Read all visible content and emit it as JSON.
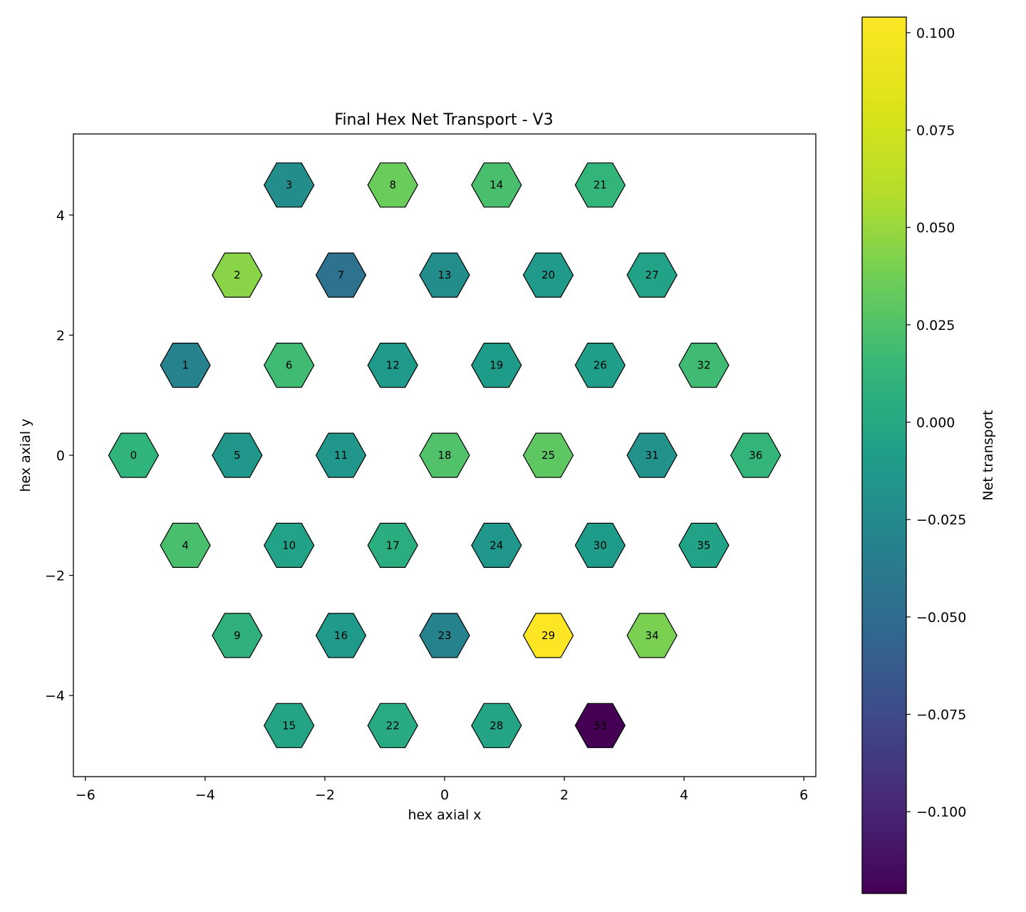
{
  "chart_data": {
    "type": "heatmap",
    "subtype": "hexagonal",
    "title": "Final Hex Net Transport - V3",
    "xlabel": "hex axial x",
    "ylabel": "hex axial y",
    "xlim": [
      -6.2,
      6.2
    ],
    "ylim": [
      -5.35,
      5.35
    ],
    "xticks": [
      -6,
      -4,
      -2,
      0,
      2,
      4,
      6
    ],
    "xtick_labels": [
      "−6",
      "−4",
      "−2",
      "0",
      "2",
      "4",
      "6"
    ],
    "yticks": [
      -4,
      -2,
      0,
      2,
      4
    ],
    "ytick_labels": [
      "−4",
      "−2",
      "0",
      "2",
      "4"
    ],
    "colorbar": {
      "label": "Net transport",
      "colormap": "viridis",
      "range": [
        -0.121,
        0.104
      ],
      "ticks": [
        0.1,
        0.075,
        0.05,
        0.025,
        0.0,
        -0.025,
        -0.05,
        -0.075,
        -0.1
      ],
      "tick_labels": [
        "0.100",
        "0.075",
        "0.050",
        "0.025",
        "0.000",
        "−0.025",
        "−0.050",
        "−0.075",
        "−0.100"
      ]
    },
    "cells": [
      {
        "id": "0",
        "x": -5.196,
        "y": 0.0,
        "value": 0.01
      },
      {
        "id": "1",
        "x": -4.33,
        "y": 1.5,
        "value": -0.03
      },
      {
        "id": "2",
        "x": -3.464,
        "y": 3.0,
        "value": 0.045
      },
      {
        "id": "3",
        "x": -2.598,
        "y": 4.5,
        "value": -0.022
      },
      {
        "id": "4",
        "x": -4.33,
        "y": -1.5,
        "value": 0.022
      },
      {
        "id": "5",
        "x": -3.464,
        "y": 0.0,
        "value": -0.015
      },
      {
        "id": "6",
        "x": -2.598,
        "y": 1.5,
        "value": 0.018
      },
      {
        "id": "7",
        "x": -1.732,
        "y": 3.0,
        "value": -0.045
      },
      {
        "id": "8",
        "x": -0.866,
        "y": 4.5,
        "value": 0.035
      },
      {
        "id": "9",
        "x": -3.464,
        "y": -3.0,
        "value": 0.008
      },
      {
        "id": "10",
        "x": -2.598,
        "y": -1.5,
        "value": -0.005
      },
      {
        "id": "11",
        "x": -1.732,
        "y": 0.0,
        "value": -0.015
      },
      {
        "id": "12",
        "x": -0.866,
        "y": 1.5,
        "value": -0.012
      },
      {
        "id": "13",
        "x": 0.0,
        "y": 3.0,
        "value": -0.022
      },
      {
        "id": "14",
        "x": 0.866,
        "y": 4.5,
        "value": 0.022
      },
      {
        "id": "15",
        "x": -2.598,
        "y": -4.5,
        "value": -0.003
      },
      {
        "id": "16",
        "x": -1.732,
        "y": -3.0,
        "value": -0.012
      },
      {
        "id": "17",
        "x": -0.866,
        "y": -1.5,
        "value": 0.005
      },
      {
        "id": "18",
        "x": 0.0,
        "y": 0.0,
        "value": 0.025
      },
      {
        "id": "19",
        "x": 0.866,
        "y": 1.5,
        "value": -0.01
      },
      {
        "id": "20",
        "x": 1.732,
        "y": 3.0,
        "value": -0.012
      },
      {
        "id": "21",
        "x": 2.598,
        "y": 4.5,
        "value": 0.012
      },
      {
        "id": "22",
        "x": -0.866,
        "y": -4.5,
        "value": 0.002
      },
      {
        "id": "23",
        "x": 0.0,
        "y": -3.0,
        "value": -0.03
      },
      {
        "id": "24",
        "x": 0.866,
        "y": -1.5,
        "value": -0.015
      },
      {
        "id": "25",
        "x": 1.732,
        "y": 0.0,
        "value": 0.03
      },
      {
        "id": "26",
        "x": 2.598,
        "y": 1.5,
        "value": -0.008
      },
      {
        "id": "27",
        "x": 3.464,
        "y": 3.0,
        "value": -0.005
      },
      {
        "id": "28",
        "x": 0.866,
        "y": -4.5,
        "value": -0.003
      },
      {
        "id": "29",
        "x": 1.732,
        "y": -3.0,
        "value": 0.104
      },
      {
        "id": "30",
        "x": 2.598,
        "y": -1.5,
        "value": -0.01
      },
      {
        "id": "31",
        "x": 3.464,
        "y": 0.0,
        "value": -0.018
      },
      {
        "id": "32",
        "x": 4.33,
        "y": 1.5,
        "value": 0.018
      },
      {
        "id": "33",
        "x": 2.598,
        "y": -4.5,
        "value": -0.121
      },
      {
        "id": "34",
        "x": 3.464,
        "y": -3.0,
        "value": 0.04
      },
      {
        "id": "35",
        "x": 4.33,
        "y": -1.5,
        "value": -0.005
      },
      {
        "id": "36",
        "x": 5.196,
        "y": 0.0,
        "value": 0.012
      }
    ]
  }
}
